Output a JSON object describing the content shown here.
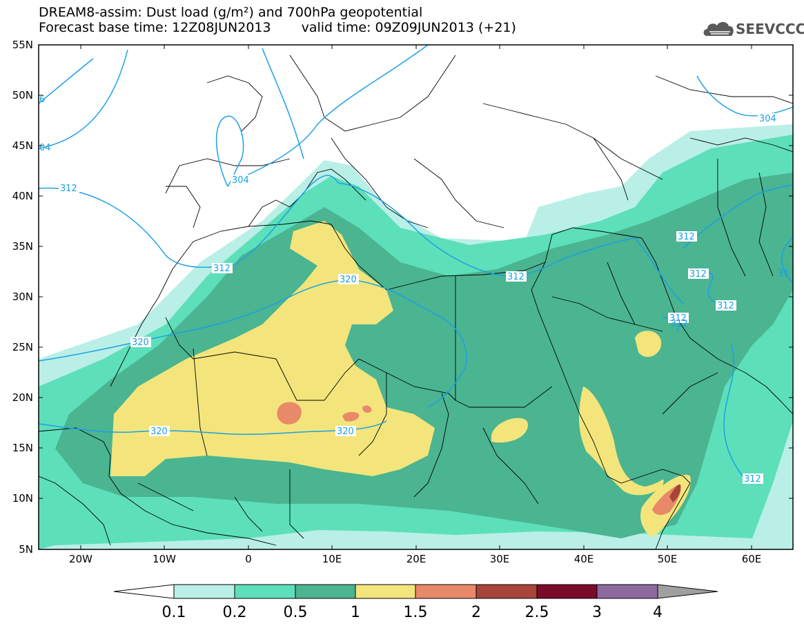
{
  "header": {
    "line1": "DREAM8-assim: Dust load (g/m²) and 700hPa geopotential",
    "base_time": "Forecast base time: 12Z08JUN2013",
    "valid_time": "valid time: 09Z09JUN2013 (+21)"
  },
  "logo": {
    "text": "SEEVCCC",
    "icon": "cloud-logo-icon"
  },
  "axes": {
    "lat_labels": [
      "55N",
      "50N",
      "45N",
      "40N",
      "35N",
      "30N",
      "25N",
      "20N",
      "15N",
      "10N",
      "5N"
    ],
    "lon_labels": [
      "20W",
      "10W",
      "0",
      "10E",
      "20E",
      "30E",
      "40E",
      "50E",
      "60E"
    ]
  },
  "contour_labels": [
    "304",
    "304",
    "04",
    "6",
    "312",
    "312",
    "312",
    "312",
    "312",
    "312",
    "312",
    "312",
    "312",
    "31",
    "320",
    "320",
    "320",
    "320"
  ],
  "colorbar": {
    "levels": [
      "0.1",
      "0.2",
      "0.5",
      "1",
      "1.5",
      "2",
      "2.5",
      "3",
      "4"
    ],
    "colors": [
      "#b9efe6",
      "#5ddfba",
      "#4bb491",
      "#f3e57b",
      "#e8896a",
      "#a8453b",
      "#7a0b2b",
      "#8c6aa0",
      "#a0a0a0"
    ]
  },
  "colors": {
    "contour": "#1aa0e6",
    "dust_01": "#b9efe6",
    "dust_02": "#5ddfba",
    "dust_05": "#4bb491",
    "dust_1": "#f3e57b",
    "dust_15": "#e8896a",
    "dust_2": "#a8453b"
  }
}
